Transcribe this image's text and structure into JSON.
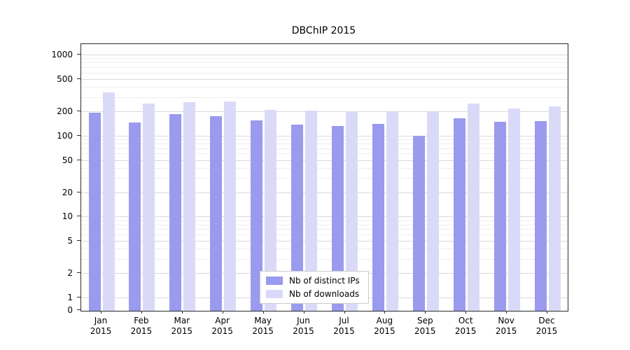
{
  "title": "DBChIP 2015",
  "colors": {
    "ips": "#9a9aee",
    "downloads": "#dadaf8",
    "grid_major": "#d9d9d9",
    "grid_minor": "#efefef",
    "axis": "#2b2b2b"
  },
  "legend": {
    "items": [
      {
        "label": "Nb of distinct IPs",
        "color_key": "ips"
      },
      {
        "label": "Nb of downloads",
        "color_key": "downloads"
      }
    ]
  },
  "y_axis": {
    "ticks": [
      0,
      1,
      2,
      5,
      10,
      20,
      50,
      100,
      200,
      500,
      1000
    ],
    "tick_labels": [
      "0",
      "1",
      "2",
      "5",
      "10",
      "20",
      "50",
      "100",
      "200",
      "500",
      "1000"
    ]
  },
  "x_axis": {
    "year": "2015"
  },
  "chart_data": {
    "type": "bar",
    "title": "DBChIP 2015",
    "scale": "symlog",
    "grid": true,
    "legend_position": "lower center",
    "ylim": [
      0,
      1500
    ],
    "categories": [
      "Jan",
      "Feb",
      "Mar",
      "Apr",
      "May",
      "Jun",
      "Jul",
      "Aug",
      "Sep",
      "Oct",
      "Nov",
      "Dec"
    ],
    "categories_year": "2015",
    "series": [
      {
        "name": "Nb of distinct IPs",
        "values": [
          197,
          148,
          188,
          176,
          157,
          140,
          135,
          143,
          102,
          168,
          152,
          155
        ]
      },
      {
        "name": "Nb of downloads",
        "values": [
          350,
          255,
          265,
          268,
          212,
          207,
          202,
          198,
          201,
          252,
          222,
          232
        ]
      }
    ]
  }
}
